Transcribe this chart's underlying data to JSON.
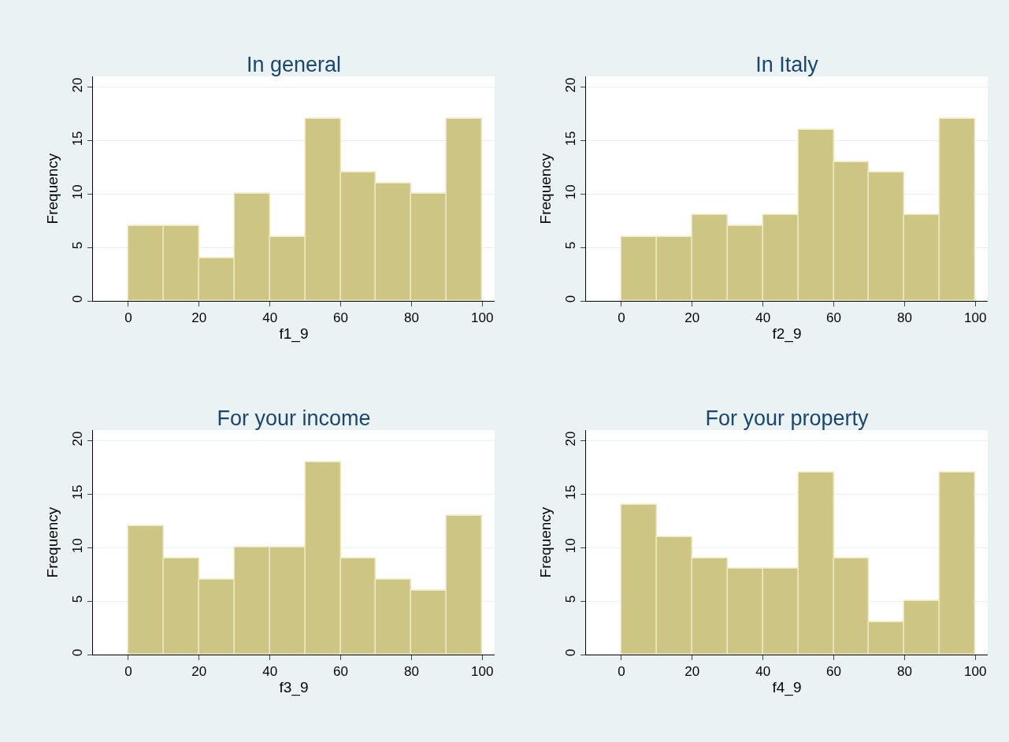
{
  "chart_data": [
    {
      "type": "histogram",
      "title": "In general",
      "xlabel": "f1_9",
      "ylabel": "Frequency",
      "bins": [
        0,
        10,
        20,
        30,
        40,
        50,
        60,
        70,
        80,
        90,
        100
      ],
      "values": [
        7,
        7,
        4,
        10,
        6,
        17,
        12,
        11,
        10,
        17
      ],
      "color": "#cdc584",
      "xlim": [
        -10,
        103.5
      ],
      "xticks": [
        0,
        20,
        40,
        60,
        80,
        100
      ],
      "ylim": [
        0,
        21
      ],
      "yticks": [
        0,
        5,
        10,
        15,
        20
      ],
      "grid": "y"
    },
    {
      "type": "histogram",
      "title": "In Italy",
      "xlabel": "f2_9",
      "ylabel": "Frequency",
      "bins": [
        0,
        10,
        20,
        30,
        40,
        50,
        60,
        70,
        80,
        90,
        100
      ],
      "values": [
        6,
        6,
        8,
        7,
        8,
        16,
        13,
        12,
        8,
        17
      ],
      "color": "#cdc584",
      "xlim": [
        -10,
        103.5
      ],
      "xticks": [
        0,
        20,
        40,
        60,
        80,
        100
      ],
      "ylim": [
        0,
        21
      ],
      "yticks": [
        0,
        5,
        10,
        15,
        20
      ],
      "grid": "y"
    },
    {
      "type": "histogram",
      "title": "For your income",
      "xlabel": "f3_9",
      "ylabel": "Frequency",
      "bins": [
        0,
        10,
        20,
        30,
        40,
        50,
        60,
        70,
        80,
        90,
        100
      ],
      "values": [
        12,
        9,
        7,
        10,
        10,
        18,
        9,
        7,
        6,
        13
      ],
      "color": "#cdc584",
      "xlim": [
        -10,
        103.5
      ],
      "xticks": [
        0,
        20,
        40,
        60,
        80,
        100
      ],
      "ylim": [
        0,
        21
      ],
      "yticks": [
        0,
        5,
        10,
        15,
        20
      ],
      "grid": "y"
    },
    {
      "type": "histogram",
      "title": "For your property",
      "xlabel": "f4_9",
      "ylabel": "Frequency",
      "bins": [
        0,
        10,
        20,
        30,
        40,
        50,
        60,
        70,
        80,
        90,
        100
      ],
      "values": [
        14,
        11,
        9,
        8,
        8,
        17,
        9,
        3,
        5,
        17
      ],
      "color": "#cdc584",
      "xlim": [
        -10,
        103.5
      ],
      "xticks": [
        0,
        20,
        40,
        60,
        80,
        100
      ],
      "ylim": [
        0,
        21
      ],
      "yticks": [
        0,
        5,
        10,
        15,
        20
      ],
      "grid": "y"
    }
  ]
}
